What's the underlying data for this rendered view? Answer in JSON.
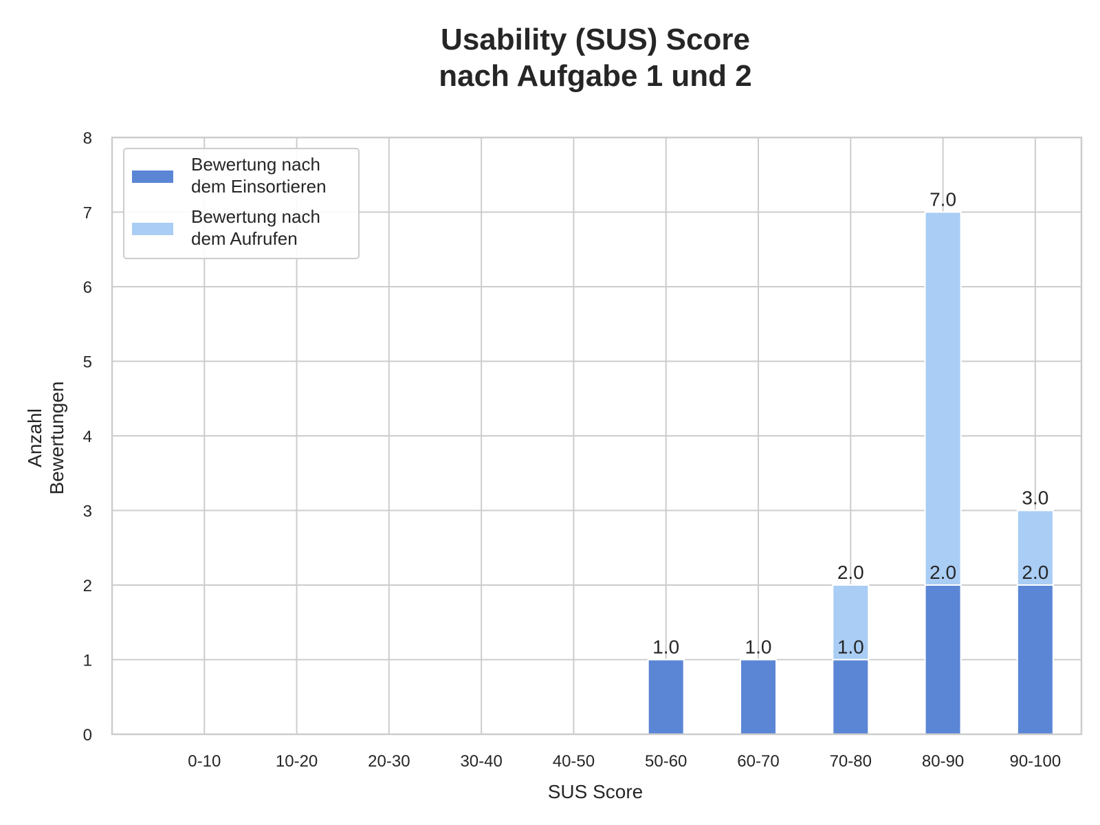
{
  "chart_data": {
    "type": "bar",
    "stacked": false,
    "title": [
      "Usability (SUS) Score",
      "nach Aufgabe 1 und 2"
    ],
    "xlabel": "SUS Score",
    "ylabel": [
      "Anzahl",
      "Bewertungen"
    ],
    "categories": [
      "0-10",
      "10-20",
      "20-30",
      "30-40",
      "40-50",
      "50-60",
      "60-70",
      "70-80",
      "80-90",
      "90-100"
    ],
    "ylim": [
      0,
      8
    ],
    "yticks": [
      "0",
      "1",
      "2",
      "3",
      "4",
      "5",
      "6",
      "7",
      "8"
    ],
    "grid": true,
    "legend_position": "top-left",
    "series": [
      {
        "legend_lines": [
          "Bewertung nach",
          "dem Einsortieren"
        ],
        "color": "#5b86d5",
        "values": [
          0,
          0,
          0,
          0,
          0,
          1,
          1,
          1,
          2,
          2
        ],
        "labels": [
          "",
          "",
          "",
          "",
          "",
          "1.0",
          "1.0",
          "1.0",
          "2.0",
          "2.0"
        ]
      },
      {
        "legend_lines": [
          "Bewertung nach",
          "dem Aufrufen"
        ],
        "color": "#a9cdf4",
        "values": [
          0,
          0,
          0,
          0,
          0,
          0,
          0,
          2,
          7,
          3
        ],
        "labels": [
          "",
          "",
          "",
          "",
          "",
          "",
          "",
          "2.0",
          "7.0",
          "3.0"
        ]
      }
    ]
  }
}
